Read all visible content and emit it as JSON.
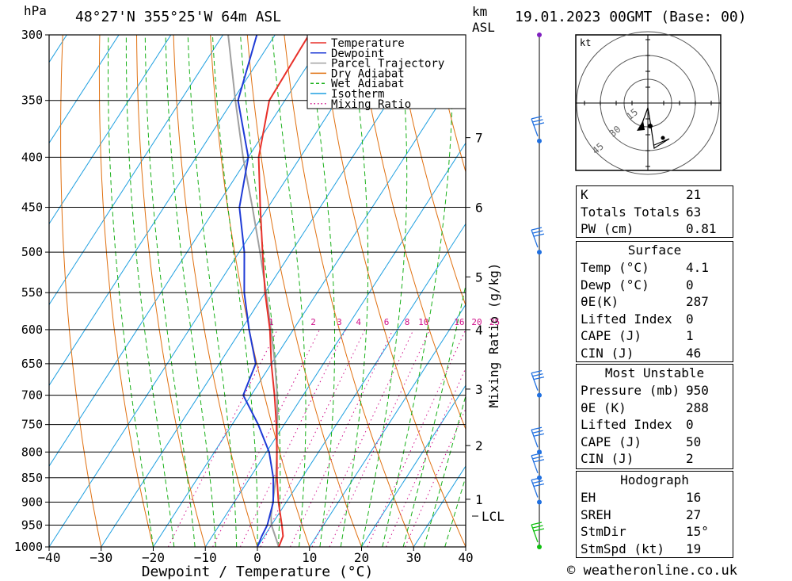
{
  "header": {
    "hpa_label": "hPa",
    "location": "48°27'N  355°25'W  64m  ASL",
    "km_label": "km",
    "asl_label": "ASL",
    "datetime": "19.01.2023  00GMT  (Base: 00)"
  },
  "chart_data": {
    "type": "skew-t",
    "xlabel": "Dewpoint / Temperature (°C)",
    "ylabel_right": "Mixing Ratio (g/kg)",
    "xlim": [
      -40,
      40
    ],
    "ylim_hpa": [
      1000,
      300
    ],
    "x_ticks": [
      -40,
      -30,
      -20,
      -10,
      0,
      10,
      20,
      30,
      40
    ],
    "pressure_levels": [
      300,
      350,
      400,
      450,
      500,
      550,
      600,
      650,
      700,
      750,
      800,
      850,
      900,
      950,
      1000
    ],
    "km_ticks": [
      {
        "label": "1",
        "p": 894
      },
      {
        "label": "2",
        "p": 788
      },
      {
        "label": "3",
        "p": 690
      },
      {
        "label": "4",
        "p": 600
      },
      {
        "label": "5",
        "p": 530
      },
      {
        "label": "6",
        "p": 450
      },
      {
        "label": "7",
        "p": 382
      }
    ],
    "lcl": {
      "label": "LCL",
      "p": 930
    },
    "mixing_ratio_labels": [
      "1",
      "2",
      "3",
      "4",
      "6",
      "8",
      "10",
      "16",
      "20",
      "25"
    ],
    "mixing_ratio_values": [
      1,
      2,
      3,
      4,
      6,
      8,
      10,
      16,
      20,
      25
    ],
    "legend": [
      "Temperature",
      "Dewpoint",
      "Parcel Trajectory",
      "Dry Adiabat",
      "Wet Adiabat",
      "Isotherm",
      "Mixing Ratio"
    ],
    "colors": {
      "temperature": "#e8302a",
      "dewpoint": "#1f3bd6",
      "parcel": "#a0a0a0",
      "dry_adiabat": "#e07010",
      "wet_adiabat": "#18b018",
      "isotherm": "#1e9fe0",
      "mixing_ratio": "#d0108a",
      "wind_barb": "#2070e0"
    },
    "temperature": [
      {
        "p": 1000,
        "t": 4.1
      },
      {
        "p": 975,
        "t": 3.6
      },
      {
        "p": 950,
        "t": 2.0
      },
      {
        "p": 900,
        "t": -1.5
      },
      {
        "p": 850,
        "t": -4.8
      },
      {
        "p": 800,
        "t": -8.0
      },
      {
        "p": 750,
        "t": -11.5
      },
      {
        "p": 700,
        "t": -15.5
      },
      {
        "p": 650,
        "t": -20.0
      },
      {
        "p": 600,
        "t": -24.5
      },
      {
        "p": 550,
        "t": -30.0
      },
      {
        "p": 500,
        "t": -35.5
      },
      {
        "p": 450,
        "t": -41.5
      },
      {
        "p": 400,
        "t": -48.0
      },
      {
        "p": 350,
        "t": -53.0
      },
      {
        "p": 300,
        "t": -53.5
      }
    ],
    "dewpoint": [
      {
        "p": 1000,
        "t": 0.0
      },
      {
        "p": 975,
        "t": -0.5
      },
      {
        "p": 950,
        "t": -0.8
      },
      {
        "p": 900,
        "t": -2.5
      },
      {
        "p": 850,
        "t": -5.5
      },
      {
        "p": 800,
        "t": -9.5
      },
      {
        "p": 750,
        "t": -15.0
      },
      {
        "p": 700,
        "t": -21.5
      },
      {
        "p": 650,
        "t": -23.0
      },
      {
        "p": 600,
        "t": -28.5
      },
      {
        "p": 550,
        "t": -34.0
      },
      {
        "p": 500,
        "t": -39.0
      },
      {
        "p": 450,
        "t": -45.5
      },
      {
        "p": 400,
        "t": -50.0
      },
      {
        "p": 350,
        "t": -59.0
      },
      {
        "p": 300,
        "t": -63.5
      }
    ],
    "parcel": [
      {
        "p": 1000,
        "t": 4.1
      },
      {
        "p": 950,
        "t": 0.0
      },
      {
        "p": 930,
        "t": -1.2
      },
      {
        "p": 900,
        "t": -2.6
      },
      {
        "p": 850,
        "t": -5.0
      },
      {
        "p": 800,
        "t": -8.0
      },
      {
        "p": 750,
        "t": -11.3
      },
      {
        "p": 700,
        "t": -15.0
      },
      {
        "p": 650,
        "t": -19.3
      },
      {
        "p": 600,
        "t": -24.3
      },
      {
        "p": 550,
        "t": -29.8
      },
      {
        "p": 500,
        "t": -36.0
      },
      {
        "p": 450,
        "t": -43.0
      },
      {
        "p": 400,
        "t": -51.0
      },
      {
        "p": 350,
        "t": -59.5
      },
      {
        "p": 300,
        "t": -69.0
      }
    ],
    "wind_levels_hpa": [
      300,
      385,
      500,
      700,
      800,
      850,
      900,
      1000
    ]
  },
  "hodograph": {
    "unit": "kt",
    "ring_labels": [
      "15",
      "30",
      "45"
    ]
  },
  "indices": {
    "top": [
      {
        "label": "K",
        "value": "21"
      },
      {
        "label": "Totals Totals",
        "value": "63"
      },
      {
        "label": "PW (cm)",
        "value": "0.81"
      }
    ],
    "surface": {
      "title": "Surface",
      "rows": [
        {
          "label": "Temp (°C)",
          "value": "4.1"
        },
        {
          "label": "Dewp (°C)",
          "value": "0"
        },
        {
          "label": "θE(K)",
          "value": "287"
        },
        {
          "label": "Lifted Index",
          "value": "0"
        },
        {
          "label": "CAPE (J)",
          "value": "1"
        },
        {
          "label": "CIN (J)",
          "value": "46"
        }
      ]
    },
    "most_unstable": {
      "title": "Most Unstable",
      "rows": [
        {
          "label": "Pressure (mb)",
          "value": "950"
        },
        {
          "label": "θE (K)",
          "value": "288"
        },
        {
          "label": "Lifted Index",
          "value": "0"
        },
        {
          "label": "CAPE (J)",
          "value": "50"
        },
        {
          "label": "CIN (J)",
          "value": "2"
        }
      ]
    },
    "hodograph": {
      "title": "Hodograph",
      "rows": [
        {
          "label": "EH",
          "value": "16"
        },
        {
          "label": "SREH",
          "value": "27"
        },
        {
          "label": "StmDir",
          "value": "15°"
        },
        {
          "label": "StmSpd (kt)",
          "value": "19"
        }
      ]
    }
  },
  "footer": {
    "copyright": "© weatheronline.co.uk"
  }
}
